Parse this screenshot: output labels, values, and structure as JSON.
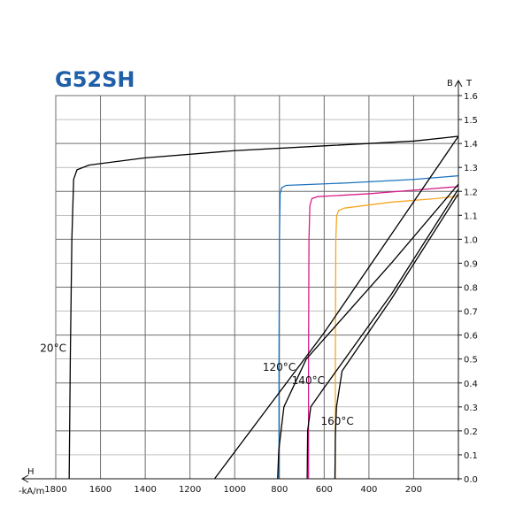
{
  "chart_data": {
    "type": "line",
    "title": "G52SH",
    "x_axis_label_lines": [
      "H",
      "-kA/m"
    ],
    "y_axis_labels": {
      "B": "B",
      "T": "T"
    },
    "x_ticks": [
      1800,
      1600,
      1400,
      1200,
      1000,
      800,
      600,
      400,
      200,
      0
    ],
    "x_tick_labels": [
      "1800",
      "1600",
      "1400",
      "1200",
      "1000",
      "800",
      "600",
      "400",
      "200",
      ""
    ],
    "y_ticks": [
      0.0,
      0.1,
      0.2,
      0.3,
      0.4,
      0.5,
      0.6,
      0.7,
      0.8,
      0.9,
      1.0,
      1.1,
      1.2,
      1.3,
      1.4,
      1.5,
      1.6
    ],
    "y_tick_labels": [
      "0.0",
      "0.1",
      "0.2",
      "0.3",
      "0.4",
      "0.5",
      "0.6",
      "0.7",
      "0.8",
      "0.9",
      "1.0",
      "1.1",
      "1.2",
      "1.3",
      "1.4",
      "1.5",
      "1.6"
    ],
    "xlim": [
      1800,
      0
    ],
    "ylim": [
      0,
      1.6
    ],
    "grid": true,
    "series": [
      {
        "name": "20°C",
        "kind": "BH",
        "color": "#000000",
        "points": [
          [
            1740,
            0.0
          ],
          [
            1735,
            0.5
          ],
          [
            1728,
            1.0
          ],
          [
            1720,
            1.25
          ],
          [
            1705,
            1.29
          ],
          [
            1650,
            1.31
          ],
          [
            1400,
            1.34
          ],
          [
            1000,
            1.37
          ],
          [
            600,
            1.39
          ],
          [
            200,
            1.41
          ],
          [
            0,
            1.43
          ]
        ]
      },
      {
        "name": "120°C",
        "kind": "BH",
        "color": "#1e73be",
        "points": [
          [
            802,
            0.0
          ],
          [
            802,
            0.5
          ],
          [
            800,
            1.0
          ],
          [
            797,
            1.19
          ],
          [
            790,
            1.215
          ],
          [
            770,
            1.225
          ],
          [
            500,
            1.235
          ],
          [
            200,
            1.25
          ],
          [
            0,
            1.265
          ]
        ]
      },
      {
        "name": "140°C",
        "kind": "BH",
        "color": "#d61f8c",
        "points": [
          [
            670,
            0.0
          ],
          [
            670,
            0.5
          ],
          [
            668,
            1.0
          ],
          [
            664,
            1.14
          ],
          [
            655,
            1.17
          ],
          [
            630,
            1.178
          ],
          [
            400,
            1.19
          ],
          [
            200,
            1.205
          ],
          [
            0,
            1.22
          ]
        ]
      },
      {
        "name": "160°C",
        "kind": "BH",
        "color": "#f5a623",
        "points": [
          [
            550,
            0.0
          ],
          [
            550,
            0.5
          ],
          [
            548,
            1.0
          ],
          [
            544,
            1.1
          ],
          [
            535,
            1.12
          ],
          [
            510,
            1.13
          ],
          [
            300,
            1.155
          ],
          [
            100,
            1.17
          ],
          [
            0,
            1.18
          ]
        ]
      },
      {
        "name": "20°C",
        "kind": "BJ",
        "color": "#000000",
        "points": [
          [
            1090,
            0.0
          ],
          [
            600,
            0.61
          ],
          [
            0,
            1.43
          ]
        ]
      },
      {
        "name": "120°C",
        "kind": "BJ",
        "color": "#000000",
        "points": [
          [
            808,
            0.0
          ],
          [
            803,
            0.12
          ],
          [
            780,
            0.3
          ],
          [
            680,
            0.5
          ],
          [
            300,
            0.9
          ],
          [
            0,
            1.23
          ]
        ]
      },
      {
        "name": "140°C",
        "kind": "BJ",
        "color": "#000000",
        "points": [
          [
            676,
            0.0
          ],
          [
            674,
            0.2
          ],
          [
            660,
            0.3
          ],
          [
            600,
            0.38
          ],
          [
            300,
            0.77
          ],
          [
            0,
            1.21
          ]
        ]
      },
      {
        "name": "160°C",
        "kind": "BJ",
        "color": "#000000",
        "points": [
          [
            552,
            0.0
          ],
          [
            550,
            0.18
          ],
          [
            545,
            0.3
          ],
          [
            520,
            0.45
          ],
          [
            300,
            0.75
          ],
          [
            0,
            1.19
          ]
        ]
      }
    ],
    "annotations": [
      {
        "text": "20°C",
        "x": 1870,
        "y": 0.53
      },
      {
        "text": "120°C",
        "x": 875,
        "y": 0.45
      },
      {
        "text": "140°C",
        "x": 745,
        "y": 0.395
      },
      {
        "text": "160°C",
        "x": 615,
        "y": 0.225
      }
    ]
  }
}
